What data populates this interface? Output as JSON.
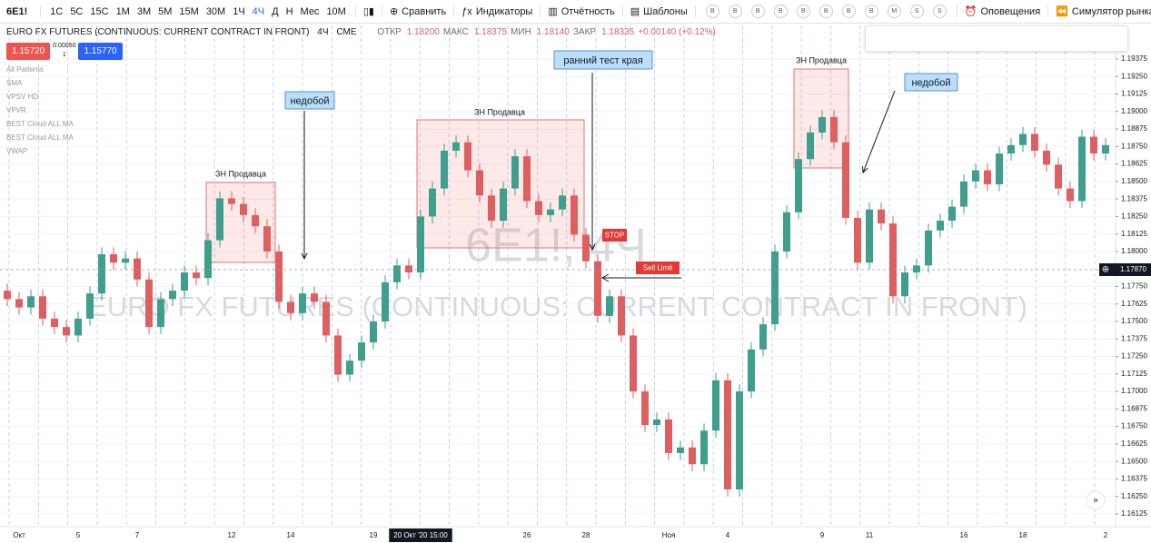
{
  "toolbar": {
    "symbol": "6E1!",
    "intervals": [
      "1С",
      "5С",
      "15С",
      "1М",
      "3М",
      "5М",
      "15М",
      "30М",
      "1Ч",
      "4Ч",
      "Д",
      "Н",
      "Мес",
      "10М"
    ],
    "compare": "Сравнить",
    "indicators": "Индикаторы",
    "reports": "Отчётность",
    "templates": "Шаблоны",
    "badges": [
      "B",
      "B",
      "B",
      "B",
      "B",
      "B",
      "B",
      "B",
      "M",
      "S",
      "S"
    ],
    "alerts": "Оповещения",
    "replay": "Симулятор рынка"
  },
  "legend": {
    "title": "EURO FX FUTURES (CONTINUOUS: CURRENT CONTRACT IN FRONT)",
    "interval": "4Ч",
    "exchange": "CME",
    "ohlc": [
      "ОТКР",
      "1.18200",
      "МАКС",
      "1.18375",
      "МИН",
      "1.18140",
      "ЗАКР",
      "1.18335"
    ],
    "change": "+0.00140 (+0.12%)",
    "sell": "1.15720",
    "spread": "0.00050",
    "qty": "1",
    "buy": "1.15770",
    "indicators": [
      "All Patterns",
      "SMA",
      "VPSV HD",
      "VPVR",
      "BEST Cloud ALL MA",
      "BEST Cloud ALL MA",
      "VWAP"
    ]
  },
  "chart_data": {
    "type": "candlestick",
    "watermark": {
      "symbol": "6E1!, 4Ч",
      "description": "EURO FX FUTURES (CONTINUOUS: CURRENT CONTRACT IN FRONT)"
    },
    "categories": [
      null,
      "Окт",
      null,
      null,
      null,
      null,
      "5",
      null,
      null,
      null,
      null,
      "7",
      null,
      null,
      null,
      null,
      null,
      null,
      null,
      "12",
      null,
      null,
      null,
      null,
      "14",
      null,
      null,
      null,
      null,
      null,
      null,
      "19",
      null,
      null,
      null,
      "20 Окт '20  15:00",
      null,
      null,
      null,
      null,
      null,
      null,
      null,
      null,
      "26",
      null,
      null,
      null,
      null,
      "28",
      null,
      null,
      null,
      null,
      null,
      null,
      "Ноя",
      null,
      null,
      null,
      null,
      "4",
      null,
      null,
      null,
      null,
      null,
      null,
      null,
      "9",
      null,
      null,
      null,
      "11",
      null,
      null,
      null,
      null,
      null,
      null,
      null,
      "16",
      null,
      null,
      null,
      null,
      "18",
      null,
      null,
      null,
      null,
      null,
      null,
      "2"
    ],
    "open": [
      1.1772,
      1.1766,
      1.176,
      1.1768,
      1.1752,
      1.1746,
      1.174,
      1.1752,
      1.177,
      1.1798,
      1.1792,
      1.1795,
      1.178,
      1.1746,
      1.1766,
      1.1772,
      1.1785,
      1.1781,
      1.1808,
      1.1838,
      1.1834,
      1.1826,
      1.1818,
      1.18,
      1.1764,
      1.1756,
      1.177,
      1.1764,
      1.174,
      1.1712,
      1.1722,
      1.1735,
      1.175,
      1.1778,
      1.179,
      1.1785,
      1.1825,
      1.1845,
      1.1872,
      1.1878,
      1.1858,
      1.184,
      1.1822,
      1.1845,
      1.1868,
      1.1836,
      1.1826,
      1.183,
      1.184,
      1.1812,
      1.1793,
      1.1754,
      1.1768,
      1.174,
      1.17,
      1.1676,
      1.168,
      1.1656,
      1.166,
      1.1648,
      1.1672,
      1.1708,
      1.163,
      1.17,
      1.173,
      1.1748,
      1.18,
      1.1828,
      1.1866,
      1.1885,
      1.1896,
      1.1878,
      1.1824,
      1.1792,
      1.183,
      1.182,
      1.1768,
      1.1785,
      1.179,
      1.1815,
      1.1822,
      1.1832,
      1.185,
      1.1858,
      1.1848,
      1.187,
      1.1876,
      1.1884,
      1.1872,
      1.1862,
      1.1845,
      1.1836,
      1.1882,
      1.187
    ],
    "high": [
      1.1777,
      1.1771,
      1.1773,
      1.1773,
      1.1757,
      1.1751,
      1.1757,
      1.1775,
      1.1803,
      1.1803,
      1.18,
      1.18,
      1.1785,
      1.1771,
      1.1777,
      1.179,
      1.179,
      1.1813,
      1.1843,
      1.1843,
      1.1839,
      1.1831,
      1.1823,
      1.1805,
      1.1769,
      1.1775,
      1.1775,
      1.1769,
      1.1745,
      1.1727,
      1.174,
      1.1755,
      1.1783,
      1.1795,
      1.1795,
      1.183,
      1.185,
      1.1877,
      1.1883,
      1.1883,
      1.1863,
      1.1845,
      1.185,
      1.1873,
      1.1873,
      1.1841,
      1.1835,
      1.1845,
      1.1845,
      1.1817,
      1.1798,
      1.1773,
      1.1773,
      1.1745,
      1.1705,
      1.1685,
      1.1685,
      1.1665,
      1.1665,
      1.1677,
      1.1713,
      1.1713,
      1.1705,
      1.1735,
      1.1753,
      1.1805,
      1.1833,
      1.1871,
      1.189,
      1.1901,
      1.1901,
      1.1883,
      1.1829,
      1.1835,
      1.1835,
      1.1825,
      1.179,
      1.1795,
      1.182,
      1.1827,
      1.1837,
      1.1855,
      1.1863,
      1.1863,
      1.1875,
      1.1881,
      1.1889,
      1.1889,
      1.1877,
      1.1867,
      1.185,
      1.1887,
      1.1887,
      1.1881
    ],
    "low": [
      1.1761,
      1.1755,
      1.1755,
      1.1747,
      1.1741,
      1.1735,
      1.1735,
      1.1747,
      1.1765,
      1.1787,
      1.1787,
      1.1775,
      1.1741,
      1.1741,
      1.1761,
      1.1767,
      1.1776,
      1.1776,
      1.1803,
      1.1829,
      1.1821,
      1.1813,
      1.1795,
      1.1759,
      1.1751,
      1.1751,
      1.1759,
      1.1735,
      1.1707,
      1.1707,
      1.1717,
      1.173,
      1.1745,
      1.1773,
      1.178,
      1.178,
      1.182,
      1.184,
      1.1867,
      1.1853,
      1.1835,
      1.1817,
      1.1817,
      1.184,
      1.1831,
      1.1821,
      1.1821,
      1.1825,
      1.1807,
      1.1788,
      1.1749,
      1.1749,
      1.1735,
      1.1695,
      1.1671,
      1.1671,
      1.1651,
      1.1651,
      1.1643,
      1.1643,
      1.1667,
      1.1625,
      1.1625,
      1.1695,
      1.1725,
      1.1743,
      1.1795,
      1.1823,
      1.1861,
      1.188,
      1.1873,
      1.1819,
      1.1787,
      1.1787,
      1.1815,
      1.1763,
      1.1763,
      1.178,
      1.1785,
      1.181,
      1.1817,
      1.1827,
      1.1845,
      1.1843,
      1.1843,
      1.1865,
      1.1871,
      1.1867,
      1.1857,
      1.184,
      1.1831,
      1.1831,
      1.1865,
      1.1865
    ],
    "close": [
      1.1766,
      1.176,
      1.1768,
      1.1752,
      1.1746,
      1.174,
      1.1752,
      1.177,
      1.1798,
      1.1792,
      1.1795,
      1.178,
      1.1746,
      1.1766,
      1.1772,
      1.1785,
      1.1781,
      1.1808,
      1.1838,
      1.1834,
      1.1826,
      1.1818,
      1.18,
      1.1764,
      1.1756,
      1.177,
      1.1764,
      1.174,
      1.1712,
      1.1722,
      1.1735,
      1.175,
      1.1778,
      1.179,
      1.1785,
      1.1825,
      1.1845,
      1.1872,
      1.1878,
      1.1858,
      1.184,
      1.1822,
      1.1845,
      1.1868,
      1.1836,
      1.1826,
      1.183,
      1.184,
      1.1812,
      1.1793,
      1.1754,
      1.1768,
      1.174,
      1.17,
      1.1676,
      1.168,
      1.1656,
      1.166,
      1.1648,
      1.1672,
      1.1708,
      1.163,
      1.17,
      1.173,
      1.1748,
      1.18,
      1.1828,
      1.1866,
      1.1885,
      1.1896,
      1.1878,
      1.1824,
      1.1792,
      1.183,
      1.182,
      1.1768,
      1.1785,
      1.179,
      1.1815,
      1.1822,
      1.1832,
      1.185,
      1.1858,
      1.1848,
      1.187,
      1.1876,
      1.1884,
      1.1872,
      1.1862,
      1.1845,
      1.1836,
      1.1882,
      1.187,
      1.1876
    ],
    "up_color": "#3f9e8c",
    "down_color": "#de5f5f",
    "ylim": [
      1.16034,
      1.19615
    ],
    "yticks": [
      1.19375,
      {
        "value": 1.1925,
        "label": "1.19250"
      },
      1.19125,
      {
        "value": 1.19,
        "label": "1.19000"
      },
      1.18875,
      {
        "value": 1.1875,
        "label": "1.18750"
      },
      1.18625,
      {
        "value": 1.185,
        "label": "1.18500"
      },
      1.18375,
      {
        "value": 1.1825,
        "label": "1.18250"
      },
      1.18125,
      {
        "value": 1.18,
        "label": "1.18000"
      },
      {
        "value": 1.1775,
        "label": "1.17750"
      },
      1.17625,
      {
        "value": 1.175,
        "label": "1.17500"
      },
      1.17375,
      {
        "value": 1.1725,
        "label": "1.17250"
      },
      1.17125,
      {
        "value": 1.17,
        "label": "1.17000"
      },
      1.16875,
      {
        "value": 1.1675,
        "label": "1.16750"
      },
      1.16625,
      {
        "value": 1.165,
        "label": "1.16500"
      },
      1.16375,
      {
        "value": 1.1625,
        "label": "1.16250"
      },
      1.16125
    ],
    "current_price": {
      "value": 1.1787,
      "label": "1.17870"
    },
    "zones": [
      "ЗН Продавца",
      "ЗН Продавца",
      "ЗН Продавца"
    ],
    "callouts": [
      "недобой",
      "ранний тест края",
      "недобой"
    ],
    "stop": "STOP",
    "sell_limit": "Sell Limit"
  }
}
